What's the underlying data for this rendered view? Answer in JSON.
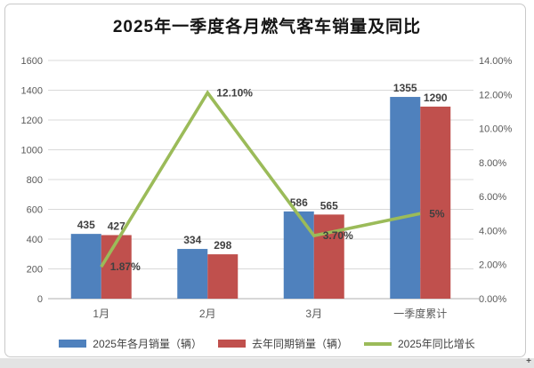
{
  "chart_data": {
    "type": "bar+line combo",
    "title": "2025年一季度各月燃气客车销量及同比",
    "categories": [
      "1月",
      "2月",
      "3月",
      "一季度累计"
    ],
    "series": [
      {
        "name": "2025年各月销量（辆）",
        "type": "bar",
        "axis": "left",
        "color": "#4F81BD",
        "values": [
          435,
          334,
          586,
          1355
        ],
        "labels": [
          "435",
          "334",
          "586",
          "1355"
        ]
      },
      {
        "name": "去年同期销量（辆）",
        "type": "bar",
        "axis": "left",
        "color": "#C0504D",
        "values": [
          427,
          298,
          565,
          1290
        ],
        "labels": [
          "427",
          "298",
          "565",
          "1290"
        ]
      },
      {
        "name": "2025年同比增长",
        "type": "line",
        "axis": "right",
        "color": "#9BBB59",
        "values": [
          1.87,
          12.1,
          3.7,
          5.0
        ],
        "labels": [
          "1.87%",
          "12.10%",
          "3.70%",
          "5%"
        ]
      }
    ],
    "left_axis": {
      "min": 0,
      "max": 1600,
      "step": 200,
      "ticks": [
        "0",
        "200",
        "400",
        "600",
        "800",
        "1000",
        "1200",
        "1400",
        "1600"
      ]
    },
    "right_axis": {
      "min": 0,
      "max": 14,
      "step": 2,
      "ticks": [
        "0.00%",
        "2.00%",
        "4.00%",
        "6.00%",
        "8.00%",
        "10.00%",
        "12.00%",
        "14.00%"
      ]
    },
    "grid": true,
    "legend_position": "bottom",
    "colors": {
      "gridline": "#d9d9d9",
      "axis_line": "#bfbfbf",
      "tick_text": "#595959",
      "data_label": "#404040",
      "title_text": "#151515"
    }
  }
}
